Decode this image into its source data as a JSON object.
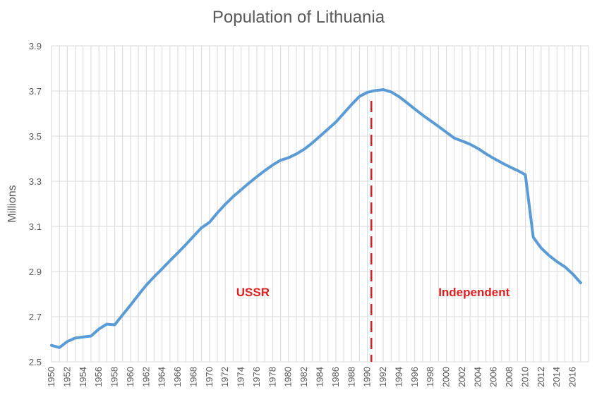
{
  "chart_data": {
    "type": "line",
    "title": "Population of Lithuania",
    "xlabel": "",
    "ylabel": "Millions",
    "ylim": [
      2.5,
      3.9
    ],
    "yticks": [
      "2.5",
      "2.7",
      "2.9",
      "3.1",
      "3.3",
      "3.5",
      "3.7",
      "3.9"
    ],
    "xlim": [
      1950,
      2017
    ],
    "xtick_labels": [
      "1950",
      "1952",
      "1954",
      "1956",
      "1958",
      "1960",
      "1962",
      "1964",
      "1966",
      "1968",
      "1970",
      "1972",
      "1974",
      "1976",
      "1978",
      "1980",
      "1982",
      "1984",
      "1986",
      "1988",
      "1990",
      "1992",
      "1994",
      "1996",
      "1998",
      "2000",
      "2002",
      "2004",
      "2006",
      "2008",
      "2010",
      "2012",
      "2014",
      "2016"
    ],
    "grid": true,
    "series": [
      {
        "color": "#5b9bd5",
        "x": [
          1950,
          1951,
          1952,
          1953,
          1954,
          1955,
          1956,
          1957,
          1958,
          1959,
          1960,
          1961,
          1962,
          1963,
          1964,
          1965,
          1966,
          1967,
          1968,
          1969,
          1970,
          1971,
          1972,
          1973,
          1974,
          1975,
          1976,
          1977,
          1978,
          1979,
          1980,
          1981,
          1982,
          1983,
          1984,
          1985,
          1986,
          1987,
          1988,
          1989,
          1990,
          1991,
          1992,
          1993,
          1994,
          1995,
          1996,
          1997,
          1998,
          1999,
          2000,
          2001,
          2002,
          2003,
          2004,
          2005,
          2006,
          2007,
          2008,
          2009,
          2010,
          2011,
          2012,
          2013,
          2014,
          2015,
          2016,
          2017
        ],
        "y": [
          2.573,
          2.563,
          2.59,
          2.605,
          2.61,
          2.614,
          2.645,
          2.667,
          2.664,
          2.708,
          2.751,
          2.796,
          2.84,
          2.877,
          2.912,
          2.948,
          2.983,
          3.019,
          3.057,
          3.094,
          3.118,
          3.16,
          3.198,
          3.232,
          3.262,
          3.292,
          3.32,
          3.347,
          3.372,
          3.393,
          3.404,
          3.421,
          3.442,
          3.469,
          3.5,
          3.531,
          3.562,
          3.601,
          3.64,
          3.676,
          3.694,
          3.702,
          3.706,
          3.696,
          3.675,
          3.648,
          3.62,
          3.593,
          3.568,
          3.543,
          3.517,
          3.491,
          3.478,
          3.464,
          3.445,
          3.422,
          3.401,
          3.382,
          3.364,
          3.348,
          3.329,
          3.052,
          3.004,
          2.971,
          2.944,
          2.921,
          2.889,
          2.85
        ]
      }
    ],
    "divider": {
      "x": 1990.5,
      "color": "#e02020"
    },
    "annotations": [
      {
        "text": "USSR",
        "x": 1975.5,
        "y": 2.81,
        "color": "#e02020"
      },
      {
        "text": "Independent",
        "x": 2003.5,
        "y": 2.81,
        "color": "#e02020"
      }
    ]
  }
}
